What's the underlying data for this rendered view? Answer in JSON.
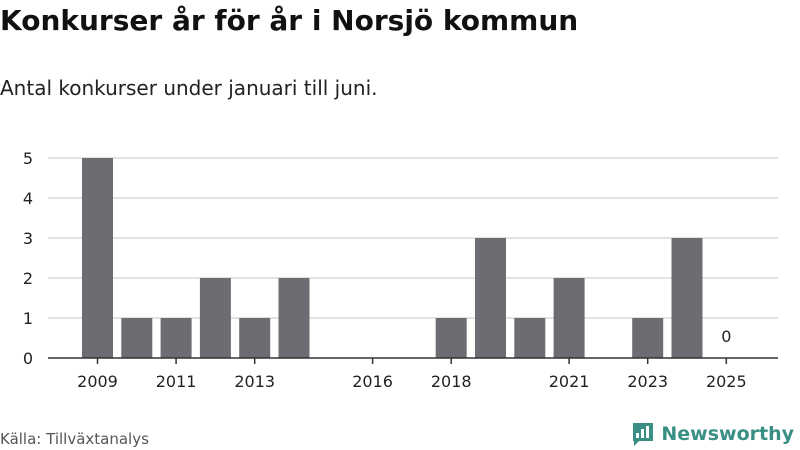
{
  "title": "Konkurser år för år i Norsjö kommun",
  "subtitle": "Antal konkurser under januari till juni.",
  "source": "Källa: Tillväxtanalys",
  "brand": "Newsworthy",
  "colors": {
    "bar": "#6e6c73",
    "grid": "#d9d9d9",
    "axis": "#333333",
    "brand": "#3a8f84"
  },
  "chart_data": {
    "type": "bar",
    "x": [
      2009,
      2010,
      2011,
      2012,
      2013,
      2014,
      2015,
      2016,
      2017,
      2018,
      2019,
      2020,
      2021,
      2022,
      2023,
      2024,
      2025
    ],
    "values": [
      5,
      1,
      1,
      2,
      1,
      2,
      null,
      null,
      null,
      1,
      3,
      1,
      2,
      null,
      1,
      3,
      0
    ],
    "x_tick_labels": [
      "2009",
      "2011",
      "2013",
      "2016",
      "2018",
      "2021",
      "2023",
      "2025"
    ],
    "y_ticks": [
      0,
      1,
      2,
      3,
      4,
      5
    ],
    "ylim": [
      0,
      5
    ],
    "grid": true,
    "data_labels": [
      {
        "x": 2025,
        "text": "0"
      }
    ]
  }
}
